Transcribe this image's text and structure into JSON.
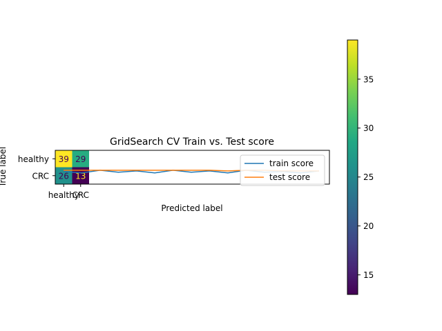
{
  "chart_data": [
    {
      "type": "heatmap",
      "title": "GridSearch CV Train vs. Test score",
      "xlabel": "Predicted label",
      "ylabel": "True label",
      "x_categories": [
        "healthy",
        "CRC"
      ],
      "y_categories": [
        "healthy",
        "CRC"
      ],
      "matrix": [
        [
          39,
          29
        ],
        [
          26,
          13
        ]
      ],
      "colormap": "viridis",
      "colorbar": {
        "range": [
          13,
          39
        ],
        "ticks": [
          15,
          20,
          25,
          30,
          35
        ]
      }
    },
    {
      "type": "line",
      "legend_position": "right",
      "series": [
        {
          "name": "train score",
          "color": "#1f77b4",
          "values": [
            0.62,
            0.6,
            0.64,
            0.61,
            0.63,
            0.6,
            0.64,
            0.61,
            0.63,
            0.6,
            0.64,
            0.61,
            0.62,
            0.6,
            0.63
          ]
        },
        {
          "name": "test score",
          "color": "#ff7f0e",
          "values": [
            0.64,
            0.64,
            0.64,
            0.64,
            0.64,
            0.64,
            0.64,
            0.64,
            0.64,
            0.63,
            0.64,
            0.64,
            0.63,
            0.63,
            0.63
          ]
        }
      ]
    }
  ]
}
